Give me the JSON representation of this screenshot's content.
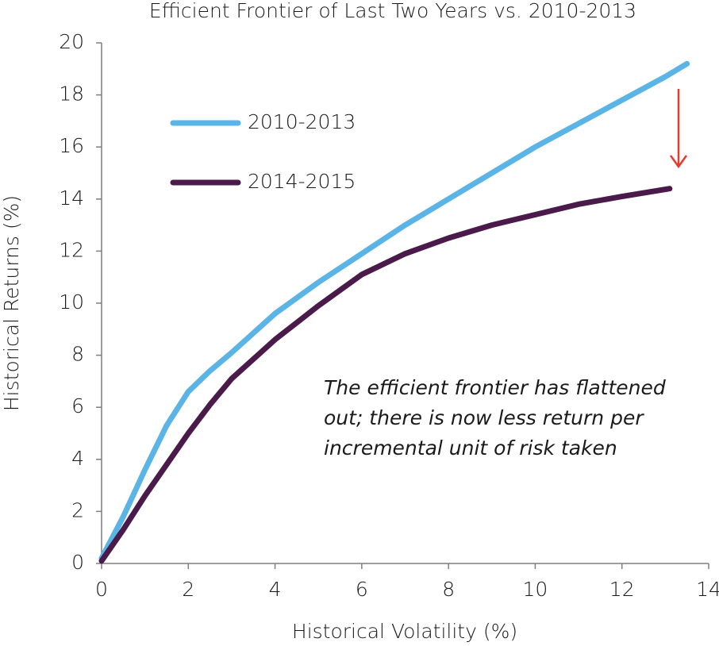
{
  "chart_data": {
    "type": "line",
    "title": "Efficient Frontier of Last Two Years vs. 2010-2013",
    "x_label": "Historical Volatility (%)",
    "y_label": "Historical Returns (%)",
    "annotation": [
      "The efficient frontier has flattened",
      "out; there is now less return per",
      "incremental unit of risk taken"
    ],
    "series": [
      {
        "name": "2010-2013",
        "color": "#5ab4e5",
        "x": [
          0,
          0.5,
          1,
          1.5,
          2,
          2.5,
          3,
          4,
          5,
          6,
          7,
          8,
          9,
          10,
          11,
          12,
          13,
          13.5
        ],
        "values": [
          0.2,
          1.8,
          3.6,
          5.3,
          6.6,
          7.4,
          8.1,
          9.6,
          10.8,
          11.9,
          13.0,
          14.0,
          15.0,
          16.0,
          16.9,
          17.8,
          18.7,
          19.2
        ]
      },
      {
        "name": "2014-2015",
        "color": "#4a1a4a",
        "x": [
          0,
          0.5,
          1,
          1.5,
          2,
          2.5,
          3,
          4,
          5,
          6,
          7,
          8,
          9,
          10,
          11,
          12,
          13.1
        ],
        "values": [
          0.1,
          1.3,
          2.6,
          3.8,
          5.0,
          6.1,
          7.1,
          8.6,
          9.9,
          11.1,
          11.9,
          12.5,
          13.0,
          13.4,
          13.8,
          14.1,
          14.4
        ]
      }
    ],
    "xlim": [
      0,
      14
    ],
    "xticks": [
      0,
      2,
      4,
      6,
      8,
      10,
      12,
      14
    ],
    "ylim": [
      0,
      20
    ],
    "yticks": [
      0,
      2,
      4,
      6,
      8,
      10,
      12,
      14,
      16,
      18,
      20
    ],
    "grid": false
  }
}
